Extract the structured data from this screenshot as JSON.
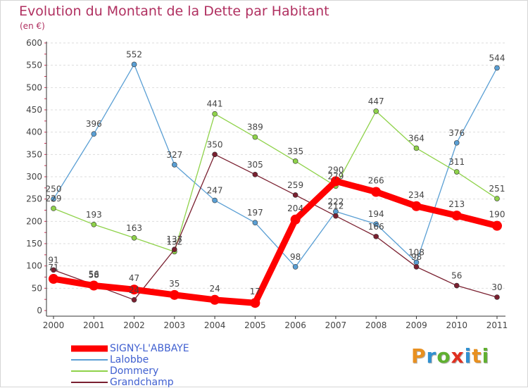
{
  "chart_data": {
    "type": "line",
    "title": "Evolution du Montant de la Dette par Habitant",
    "subtitle": "(en €)",
    "xlabel": "",
    "ylabel": "",
    "x": [
      "2000",
      "2001",
      "2002",
      "2003",
      "2004",
      "2005",
      "2006",
      "2007",
      "2008",
      "2009",
      "2010",
      "2011"
    ],
    "ylim": [
      0,
      600
    ],
    "yticks": [
      "0",
      "50",
      "100",
      "150",
      "200",
      "250",
      "300",
      "350",
      "400",
      "450",
      "500",
      "550",
      "600"
    ],
    "grid": "horizontal",
    "legend_position": "bottom-left",
    "series": [
      {
        "name": "Lalobbe",
        "color": "#5a9fd4",
        "values": [
          250,
          396,
          552,
          327,
          247,
          197,
          98,
          222,
          194,
          108,
          376,
          544
        ],
        "labels": [
          "250",
          "396",
          "552",
          "327",
          "247",
          "197",
          "98",
          "222",
          "194",
          "108",
          "376",
          "544"
        ]
      },
      {
        "name": "Dommery",
        "color": "#8fd24a",
        "values": [
          229,
          193,
          163,
          132,
          441,
          389,
          335,
          279,
          447,
          364,
          311,
          251
        ],
        "labels": [
          "229",
          "193",
          "163",
          "132",
          "441",
          "389",
          "335",
          "279",
          "447",
          "364",
          "311",
          "251"
        ]
      },
      {
        "name": "Grandchamp",
        "color": "#7a2030",
        "values": [
          91,
          58,
          24,
          137,
          350,
          305,
          259,
          212,
          166,
          98,
          56,
          30
        ],
        "labels": [
          "91",
          "58",
          "24",
          "137",
          "350",
          "305",
          "259",
          "212",
          "166",
          "98",
          "56",
          "30"
        ]
      },
      {
        "name": "SIGNY-L'ABBAYE",
        "color": "#ff0000",
        "values": [
          71,
          56,
          47,
          35,
          24,
          17,
          204,
          290,
          266,
          234,
          213,
          190
        ],
        "labels": [
          "71",
          "56",
          "47",
          "35",
          "24",
          "17",
          "204",
          "290",
          "266",
          "234",
          "213",
          "190"
        ]
      }
    ],
    "legend": [
      "SIGNY-L'ABBAYE",
      "Lalobbe",
      "Dommery",
      "Grandchamp"
    ]
  },
  "brand": {
    "letters": [
      "P",
      "r",
      "o",
      "x",
      "i",
      "t",
      "i"
    ],
    "colors": [
      "#e89020",
      "#3090d0",
      "#60b030",
      "#e03020",
      "#3090d0",
      "#e89020",
      "#60b030"
    ]
  }
}
